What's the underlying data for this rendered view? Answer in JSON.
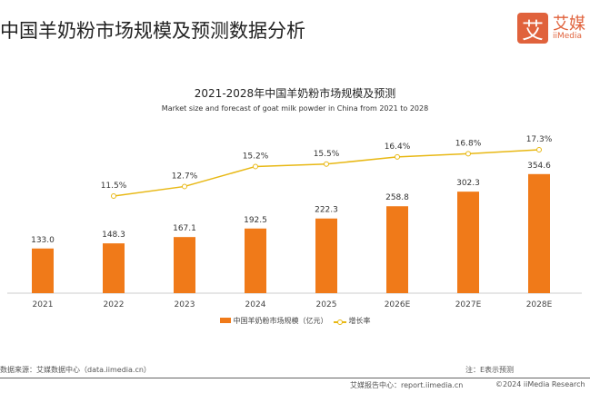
{
  "page": {
    "title": "中国羊奶粉市场规模及预测数据分析",
    "logo_cn": "艾媒",
    "logo_en": "iiMedia",
    "logo_mark": "艾",
    "source": "数据来源：艾媒数据中心（data.iimedia.cn）",
    "note": "注：E表示预测",
    "footer_report": "艾媒报告中心：report.iimedia.cn",
    "footer_copyright": "©2024  iiMedia Research"
  },
  "chart_data": {
    "type": "bar",
    "title": "2021-2028年中国羊奶粉市场规模及预测",
    "subtitle": "Market size and forecast of goat milk powder in China from 2021 to 2028",
    "categories": [
      "2021",
      "2022",
      "2023",
      "2024",
      "2025",
      "2026E",
      "2027E",
      "2028E"
    ],
    "series": [
      {
        "name": "中国羊奶粉市场规模（亿元）",
        "type": "bar",
        "color": "#f07a19",
        "values": [
          133.0,
          148.3,
          167.1,
          192.5,
          222.3,
          258.8,
          302.3,
          354.6
        ],
        "labels": [
          "133.0",
          "148.3",
          "167.1",
          "192.5",
          "222.3",
          "258.8",
          "302.3",
          "354.6"
        ]
      },
      {
        "name": "增长率",
        "type": "line",
        "color": "#e8b814",
        "values": [
          null,
          11.5,
          12.7,
          15.2,
          15.5,
          16.4,
          16.8,
          17.3
        ],
        "labels": [
          "",
          "11.5%",
          "12.7%",
          "15.2%",
          "15.5%",
          "16.4%",
          "16.8%",
          "17.3%"
        ]
      }
    ],
    "legend": "bottom",
    "grid": false
  }
}
